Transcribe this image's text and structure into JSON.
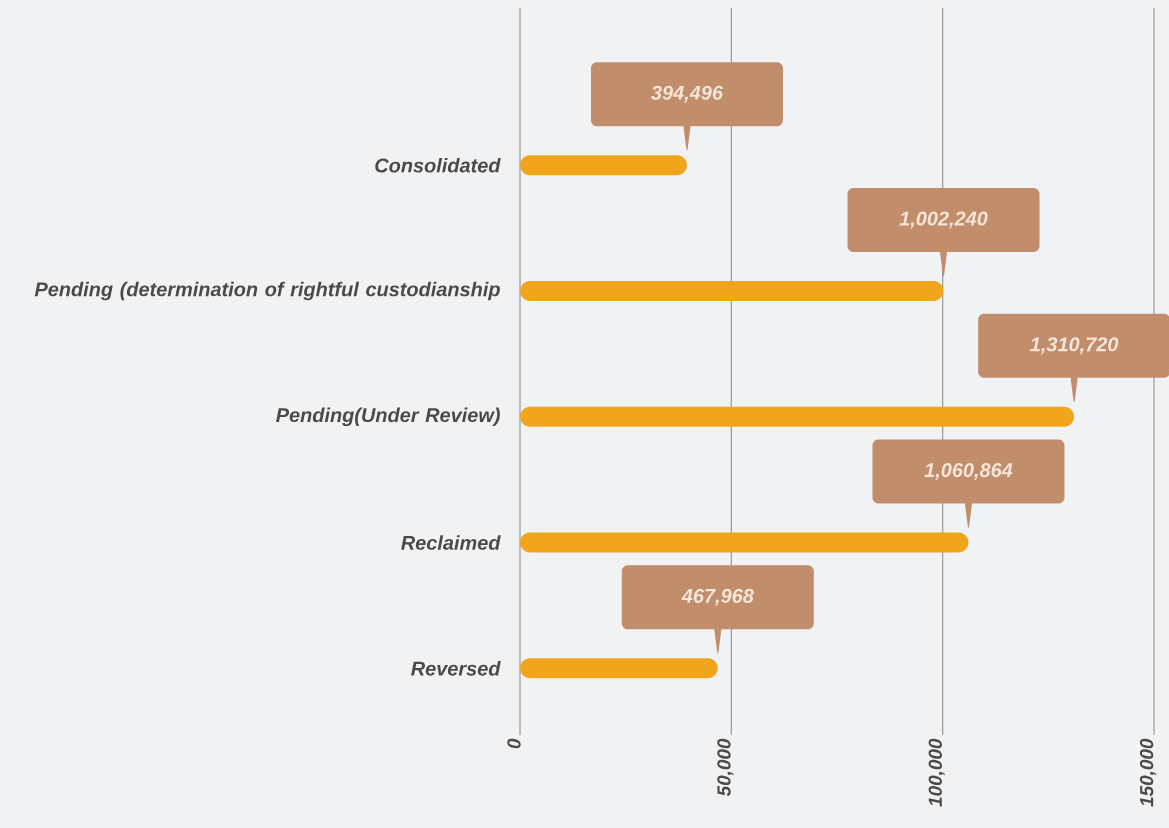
{
  "chart_data": {
    "type": "bar",
    "orientation": "horizontal",
    "categories": [
      "Consolidated",
      "Pending (determination of rightful custodianship",
      "Pending(Under Review)",
      "Reclaimed",
      "Reversed"
    ],
    "values": [
      39500,
      100200,
      131100,
      106100,
      46800
    ],
    "annotations": [
      "394,496",
      "1,002,240",
      "1,310,720",
      "1,060,864",
      "467,968"
    ],
    "color": "#f0a51c",
    "xlim": [
      0,
      150000
    ],
    "xticks": [
      {
        "value": 0,
        "label": "0"
      },
      {
        "value": 50000,
        "label": "50,000"
      },
      {
        "value": 100000,
        "label": "100,000"
      },
      {
        "value": 150000,
        "label": "150,000"
      }
    ],
    "grid": "x"
  }
}
